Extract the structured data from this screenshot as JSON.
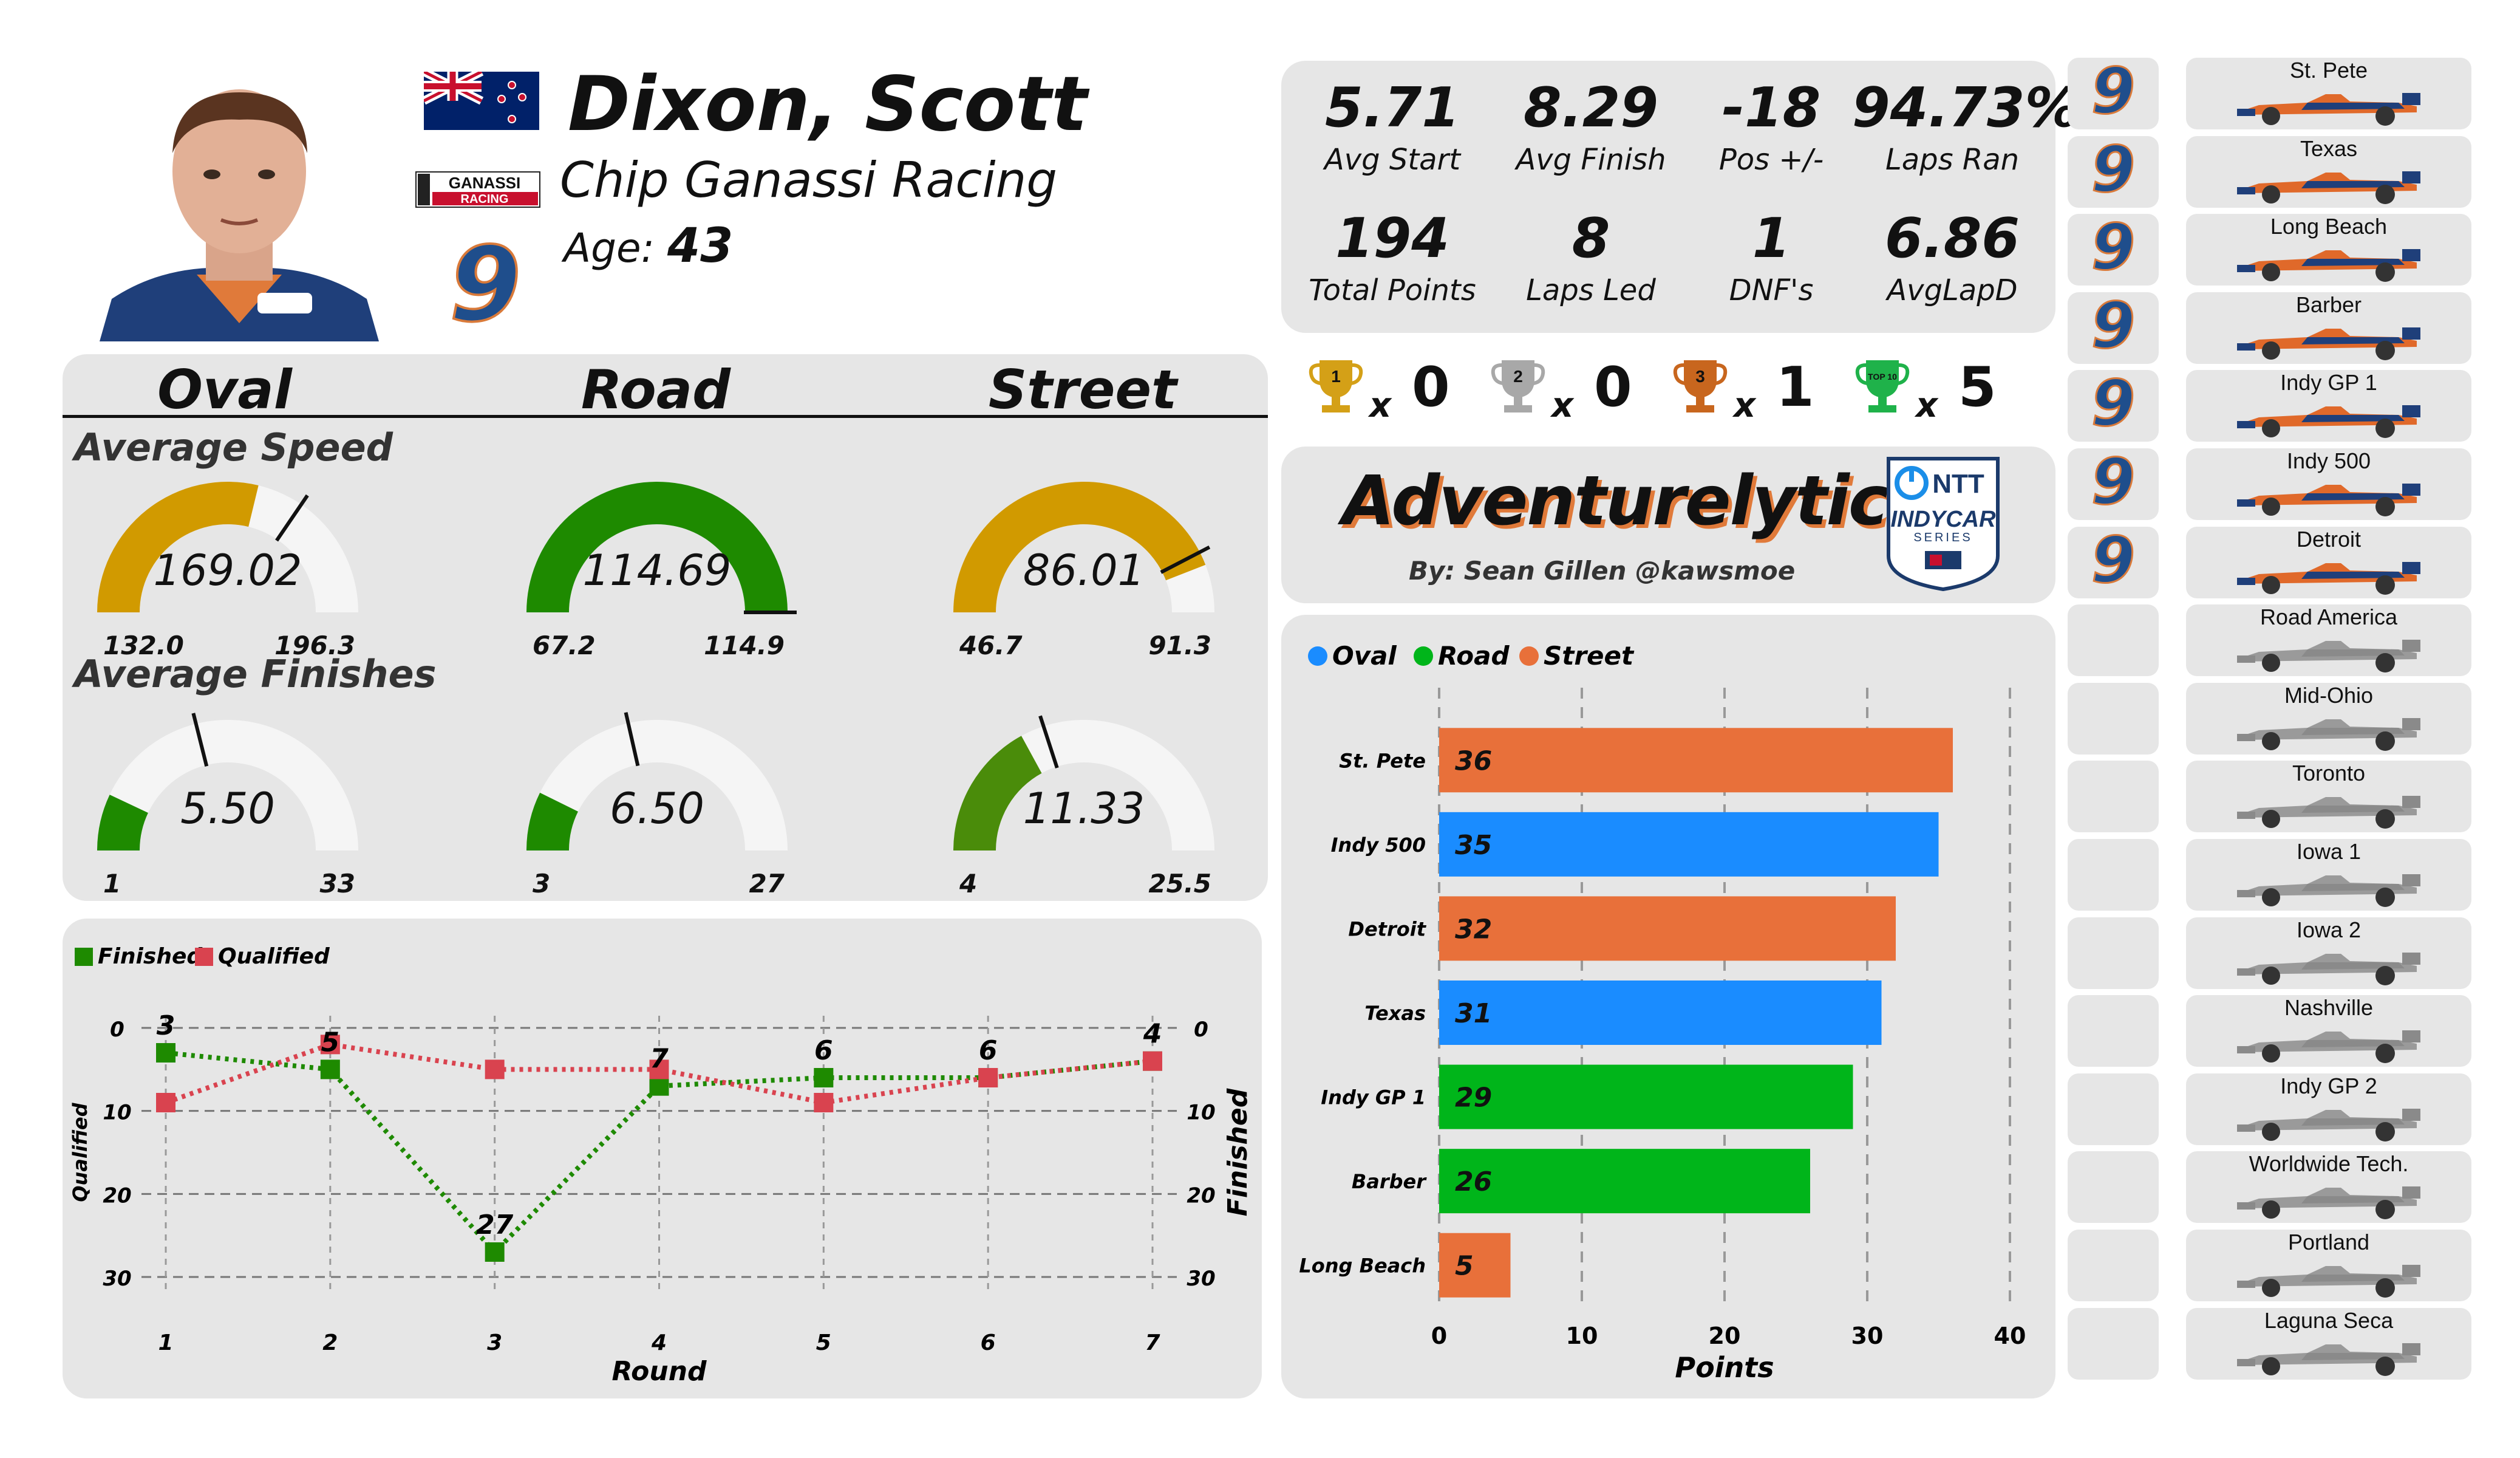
{
  "driver": {
    "name": "Dixon, Scott",
    "team": "Chip Ganassi Racing",
    "age_label": "Age:",
    "age": "43",
    "car_number": "9",
    "team_logo_top": "GANASSI",
    "team_logo_bottom": "RACING"
  },
  "stats": [
    {
      "value": "5.71",
      "label": "Avg Start"
    },
    {
      "value": "8.29",
      "label": "Avg Finish"
    },
    {
      "value": "-18",
      "label": "Pos +/-"
    },
    {
      "value": "94.73%",
      "label": "Laps Ran"
    },
    {
      "value": "194",
      "label": "Total Points"
    },
    {
      "value": "8",
      "label": "Laps Led"
    },
    {
      "value": "1",
      "label": "DNF's"
    },
    {
      "value": "6.86",
      "label": "AvgLapD"
    }
  ],
  "trophies": [
    {
      "badge": "1",
      "x": "x",
      "count": "0",
      "color": "#d4a017"
    },
    {
      "badge": "2",
      "x": "x",
      "count": "0",
      "color": "#a8a8a8"
    },
    {
      "badge": "3",
      "x": "x",
      "count": "1",
      "color": "#c8661e"
    },
    {
      "badge": "TOP 10",
      "x": "x",
      "count": "5",
      "color": "#1fb24a"
    }
  ],
  "branding": {
    "title": "Adventurelytics",
    "by": "By: Sean Gillen @kawsmoe",
    "series_top": "NTT",
    "series_mid": "INDYCAR",
    "series_bot": "SERIES"
  },
  "track_types": {
    "oval": "Oval",
    "road": "Road",
    "street": "Street",
    "speed_title": "Average Speed",
    "finish_title": "Average Finishes"
  },
  "gauges": {
    "speed": [
      {
        "value": 169.02,
        "label": "169.02",
        "min": 132.0,
        "max": 196.3,
        "min_label": "132.0",
        "max_label": "196.3",
        "target": 176.4,
        "color": "#d19a00"
      },
      {
        "value": 114.69,
        "label": "114.69",
        "min": 67.2,
        "max": 114.9,
        "min_label": "67.2",
        "max_label": "114.9",
        "target": 114.9,
        "color": "#1e8a00"
      },
      {
        "value": 86.01,
        "label": "86.01",
        "min": 46.7,
        "max": 91.3,
        "min_label": "46.7",
        "max_label": "91.3",
        "target": 84.5,
        "color": "#d19a00"
      }
    ],
    "finish": [
      {
        "value": 5.5,
        "label": "5.50",
        "min": 1,
        "max": 33,
        "min_label": "1",
        "max_label": "33",
        "target": 14.5,
        "color": "#1e8a00"
      },
      {
        "value": 6.5,
        "label": "6.50",
        "min": 3,
        "max": 27,
        "min_label": "3",
        "max_label": "27",
        "target": 13.3,
        "color": "#1e8a00"
      },
      {
        "value": 11.33,
        "label": "11.33",
        "min": 4,
        "max": 25.5,
        "min_label": "4",
        "max_label": "25.5",
        "target": 12.6,
        "color": "#4a8c0a"
      }
    ]
  },
  "chart_data": [
    {
      "type": "line",
      "xlabel": "Round",
      "ylabel_left": "Qualified",
      "ylabel_right": "Finished",
      "x": [
        1,
        2,
        3,
        4,
        5,
        6,
        7
      ],
      "ylim": [
        0,
        30
      ],
      "y_inverted": true,
      "yticks": [
        0,
        10,
        20,
        30
      ],
      "grid": true,
      "legend": "top-left",
      "series": [
        {
          "name": "Finished",
          "color": "#1e8a00",
          "values": [
            3,
            5,
            27,
            7,
            6,
            6,
            4
          ]
        },
        {
          "name": "Qualified",
          "color": "#d9434f",
          "values": [
            9,
            2,
            5,
            5,
            9,
            6,
            4
          ]
        }
      ],
      "annotations": [
        "3",
        "5",
        "27",
        "7",
        "6",
        "6",
        "4"
      ]
    },
    {
      "type": "bar",
      "orientation": "horizontal",
      "xlabel": "Points",
      "xlim": [
        0,
        40
      ],
      "xticks": [
        0,
        10,
        20,
        30,
        40
      ],
      "legend": "top-left",
      "legend_items": [
        {
          "name": "Oval",
          "color": "#1a8cff"
        },
        {
          "name": "Road",
          "color": "#00b51a"
        },
        {
          "name": "Street",
          "color": "#e8703a"
        }
      ],
      "categories": [
        "St. Pete",
        "Indy 500",
        "Detroit",
        "Texas",
        "Indy GP 1",
        "Barber",
        "Long Beach"
      ],
      "values": [
        36,
        35,
        32,
        31,
        29,
        26,
        5
      ],
      "colors": [
        "#e8703a",
        "#1a8cff",
        "#e8703a",
        "#1a8cff",
        "#00b51a",
        "#00b51a",
        "#e8703a"
      ]
    }
  ],
  "races": [
    {
      "name": "St. Pete",
      "completed": true
    },
    {
      "name": "Texas",
      "completed": true
    },
    {
      "name": "Long Beach",
      "completed": true
    },
    {
      "name": "Barber",
      "completed": true
    },
    {
      "name": "Indy GP 1",
      "completed": true
    },
    {
      "name": "Indy 500",
      "completed": true
    },
    {
      "name": "Detroit",
      "completed": true
    },
    {
      "name": "Road America",
      "completed": false
    },
    {
      "name": "Mid-Ohio",
      "completed": false
    },
    {
      "name": "Toronto",
      "completed": false
    },
    {
      "name": "Iowa 1",
      "completed": false
    },
    {
      "name": "Iowa 2",
      "completed": false
    },
    {
      "name": "Nashville",
      "completed": false
    },
    {
      "name": "Indy GP 2",
      "completed": false
    },
    {
      "name": "Worldwide Tech.",
      "completed": false
    },
    {
      "name": "Portland",
      "completed": false
    },
    {
      "name": "Laguna Seca",
      "completed": false
    }
  ]
}
